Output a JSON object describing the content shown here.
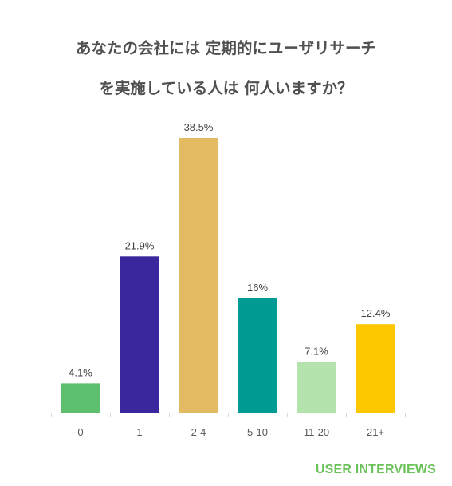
{
  "title": {
    "line1": "あなたの会社には 定期的にユーザリサーチ",
    "line2": "を実施している人は 何人いますか？"
  },
  "brand": "USER INTERVIEWS",
  "colors": {
    "title": "#505050",
    "axis": "#d9d9d9",
    "tick_label": "#595959",
    "data_label": "#404040",
    "brand": "#6cc25a"
  },
  "chart_data": {
    "type": "bar",
    "categories": [
      "0",
      "1",
      "2-4",
      "5-10",
      "11-20",
      "21+"
    ],
    "values": [
      4.1,
      21.9,
      38.5,
      16,
      7.1,
      12.4
    ],
    "data_labels": [
      "4.1%",
      "21.9%",
      "38.5%",
      "16%",
      "7.1%",
      "12.4%"
    ],
    "bar_colors": [
      "#5ebf6e",
      "#3a279e",
      "#e3bb63",
      "#009b92",
      "#b5e3ad",
      "#fdc800"
    ],
    "ylim": [
      0,
      40
    ],
    "grid": false,
    "legend": "none"
  }
}
